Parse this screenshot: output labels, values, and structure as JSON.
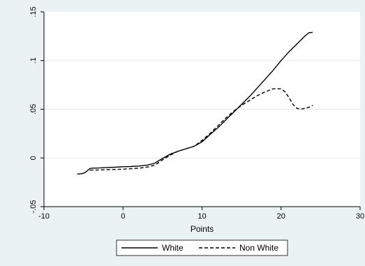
{
  "chart_data": {
    "type": "line",
    "title": "",
    "xlabel": "Points",
    "ylabel": "",
    "xlim": [
      -10,
      30
    ],
    "ylim": [
      -0.05,
      0.15
    ],
    "xticks": [
      {
        "value": -10,
        "label": "-10"
      },
      {
        "value": 0,
        "label": "0"
      },
      {
        "value": 10,
        "label": "10"
      },
      {
        "value": 20,
        "label": "20"
      },
      {
        "value": 30,
        "label": "30"
      }
    ],
    "yticks": [
      {
        "value": -0.05,
        "label": "-.05"
      },
      {
        "value": 0,
        "label": "0"
      },
      {
        "value": 0.05,
        "label": ".05"
      },
      {
        "value": 0.1,
        "label": ".1"
      },
      {
        "value": 0.15,
        "label": ".15"
      }
    ],
    "grid": "horizontal",
    "legend": "bottom",
    "series": [
      {
        "name": "White",
        "style": "solid",
        "color": "#000000",
        "x": [
          -5.8,
          -5.2,
          -4.8,
          -4.5,
          -4.2,
          -4.0,
          -3.0,
          -2.0,
          -1.0,
          0,
          1,
          2,
          3,
          4,
          5,
          6,
          7,
          8,
          9,
          10,
          11,
          12,
          13,
          14,
          15,
          16,
          17,
          18,
          19,
          20,
          21,
          22,
          23,
          23.5,
          24
        ],
        "y": [
          -0.0165,
          -0.0162,
          -0.015,
          -0.013,
          -0.011,
          -0.0105,
          -0.0103,
          -0.0098,
          -0.0095,
          -0.009,
          -0.0088,
          -0.0083,
          -0.0075,
          -0.0055,
          -0.0005,
          0.004,
          0.007,
          0.0095,
          0.012,
          0.0165,
          0.024,
          0.031,
          0.039,
          0.047,
          0.055,
          0.063,
          0.072,
          0.081,
          0.09,
          0.1,
          0.109,
          0.117,
          0.125,
          0.1285,
          0.129
        ]
      },
      {
        "name": "Non White",
        "style": "dashed",
        "color": "#000000",
        "x": [
          -4.2,
          -3.0,
          -2.0,
          -1.0,
          0,
          1,
          2,
          3,
          4,
          5,
          6,
          7,
          8,
          9,
          10,
          11,
          12,
          13,
          14,
          15,
          16,
          17,
          18,
          19,
          20,
          20.5,
          21,
          21.5,
          22,
          22.5,
          23,
          23.5,
          24
        ],
        "y": [
          -0.0125,
          -0.0123,
          -0.012,
          -0.0118,
          -0.0115,
          -0.011,
          -0.0105,
          -0.0095,
          -0.0075,
          -0.002,
          0.003,
          0.007,
          0.0095,
          0.012,
          0.018,
          0.025,
          0.033,
          0.041,
          0.048,
          0.054,
          0.059,
          0.064,
          0.068,
          0.071,
          0.071,
          0.068,
          0.062,
          0.055,
          0.051,
          0.05,
          0.051,
          0.052,
          0.054
        ]
      }
    ]
  }
}
